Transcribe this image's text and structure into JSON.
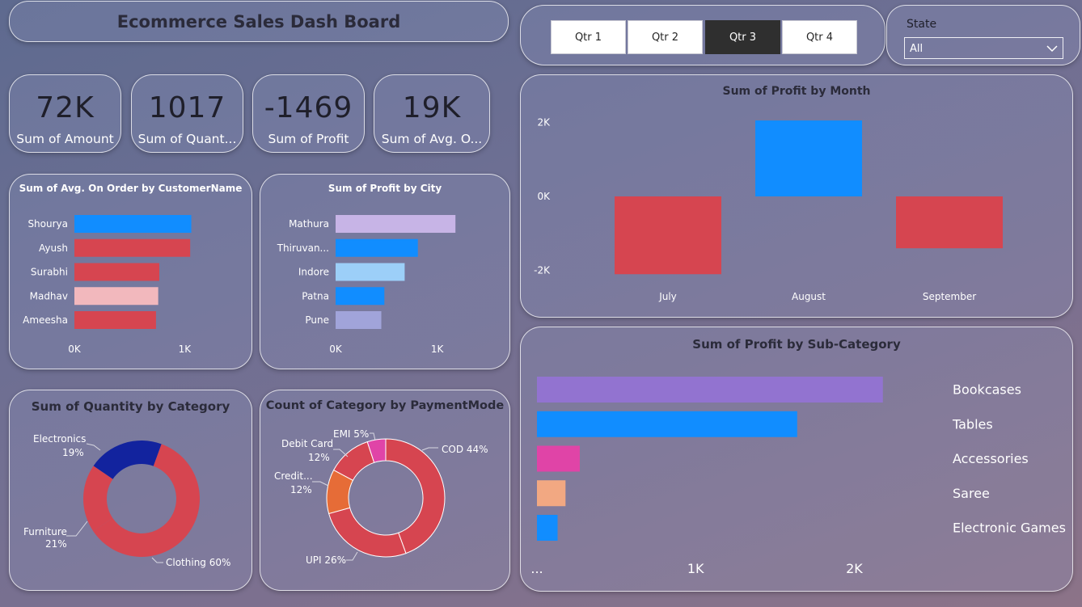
{
  "dashboard": {
    "title": "Ecommerce Sales Dash Board"
  },
  "quarter_slicer": {
    "buttons": [
      "Qtr 1",
      "Qtr 2",
      "Qtr 3",
      "Qtr 4"
    ],
    "selected": "Qtr 3"
  },
  "state_slicer": {
    "label": "State",
    "value": "All"
  },
  "kpis": [
    {
      "value": "72K",
      "label": "Sum of Amount"
    },
    {
      "value": "1017",
      "label": "Sum of Quant..."
    },
    {
      "value": "-1469",
      "label": "Sum of Profit"
    },
    {
      "value": "19K",
      "label": "Sum of Avg. O..."
    }
  ],
  "colors": {
    "blue": "#118dff",
    "red": "#d64550",
    "pink_light": "#f2b8bd",
    "lavender": "#c7b4e6",
    "light_blue": "#9ccff8",
    "periwinkle": "#a1a4da",
    "purple": "#9273d0",
    "magenta": "#e044a7",
    "peach": "#f2a882",
    "navy": "#12239e",
    "orange": "#e66c37"
  },
  "chart_data": [
    {
      "id": "avg_by_customer",
      "type": "bar",
      "orientation": "horizontal",
      "title": "Sum of Avg. On Order by CustomerName",
      "categories": [
        "Shourya",
        "Ayush",
        "Surabhi",
        "Madhav",
        "Ameesha"
      ],
      "values": [
        1060,
        1050,
        770,
        760,
        740
      ],
      "bar_colors": [
        "#118dff",
        "#d64550",
        "#d64550",
        "#f2b8bd",
        "#d64550"
      ],
      "xlim": [
        0,
        1100
      ],
      "x_ticks": [
        {
          "value": 0,
          "label": "0K"
        },
        {
          "value": 1000,
          "label": "1K"
        }
      ]
    },
    {
      "id": "profit_by_city",
      "type": "bar",
      "orientation": "horizontal",
      "title": "Sum of Profit by City",
      "categories": [
        "Mathura",
        "Thiruvan...",
        "Indore",
        "Patna",
        "Pune"
      ],
      "values": [
        1180,
        810,
        680,
        480,
        450
      ],
      "bar_colors": [
        "#c7b4e6",
        "#118dff",
        "#9ccff8",
        "#118dff",
        "#a1a4da"
      ],
      "xlim": [
        0,
        1250
      ],
      "x_ticks": [
        {
          "value": 0,
          "label": "0K"
        },
        {
          "value": 1000,
          "label": "1K"
        }
      ]
    },
    {
      "id": "profit_by_month",
      "type": "bar",
      "title": "Sum of Profit by Month",
      "categories": [
        "July",
        "August",
        "September"
      ],
      "values": [
        -2100,
        2050,
        -1400
      ],
      "bar_colors": [
        "#d64550",
        "#118dff",
        "#d64550"
      ],
      "ylim": [
        -2400,
        2400
      ],
      "y_ticks": [
        {
          "value": 2000,
          "label": "2K"
        },
        {
          "value": 0,
          "label": "0K"
        },
        {
          "value": -2000,
          "label": "-2K"
        }
      ]
    },
    {
      "id": "profit_by_subcategory",
      "type": "bar",
      "orientation": "horizontal",
      "title": "Sum of Profit by Sub-Category",
      "categories": [
        "Bookcases",
        "Tables",
        "Accessories",
        "Saree",
        "Electronic Games"
      ],
      "values": [
        2180,
        1640,
        270,
        180,
        130
      ],
      "bar_colors": [
        "#9273d0",
        "#118dff",
        "#e044a7",
        "#f2a882",
        "#118dff"
      ],
      "xlim": [
        0,
        2380
      ],
      "x_ticks": [
        {
          "value": 0,
          "label": "..."
        },
        {
          "value": 1000,
          "label": "1K"
        },
        {
          "value": 2000,
          "label": "2K"
        }
      ]
    },
    {
      "id": "qty_by_category",
      "type": "pie",
      "donut": true,
      "title": "Sum of Quantity by Category",
      "slices": [
        {
          "name": "Clothing",
          "value": 60,
          "label": "Clothing 60%",
          "color": "#d64550"
        },
        {
          "name": "Electronics",
          "value": 19,
          "label": "Electronics 19%",
          "color": "#d64550"
        },
        {
          "name": "Furniture",
          "value": 21,
          "label": "Furniture 21%",
          "color": "#12239e"
        }
      ]
    },
    {
      "id": "category_by_payment",
      "type": "pie",
      "donut": true,
      "title": "Count of Category by PaymentMode",
      "slices": [
        {
          "name": "COD",
          "value": 44,
          "label": "COD 44%",
          "color": "#d64550"
        },
        {
          "name": "UPI",
          "value": 26,
          "label": "UPI 26%",
          "color": "#d64550"
        },
        {
          "name": "Credit...",
          "value": 12,
          "label": "Credit... 12%",
          "color": "#e66c37"
        },
        {
          "name": "Debit Card",
          "value": 12,
          "label": "Debit Card 12%",
          "color": "#d64550"
        },
        {
          "name": "EMI",
          "value": 5,
          "label": "EMI 5%",
          "color": "#e044a7"
        }
      ]
    }
  ]
}
